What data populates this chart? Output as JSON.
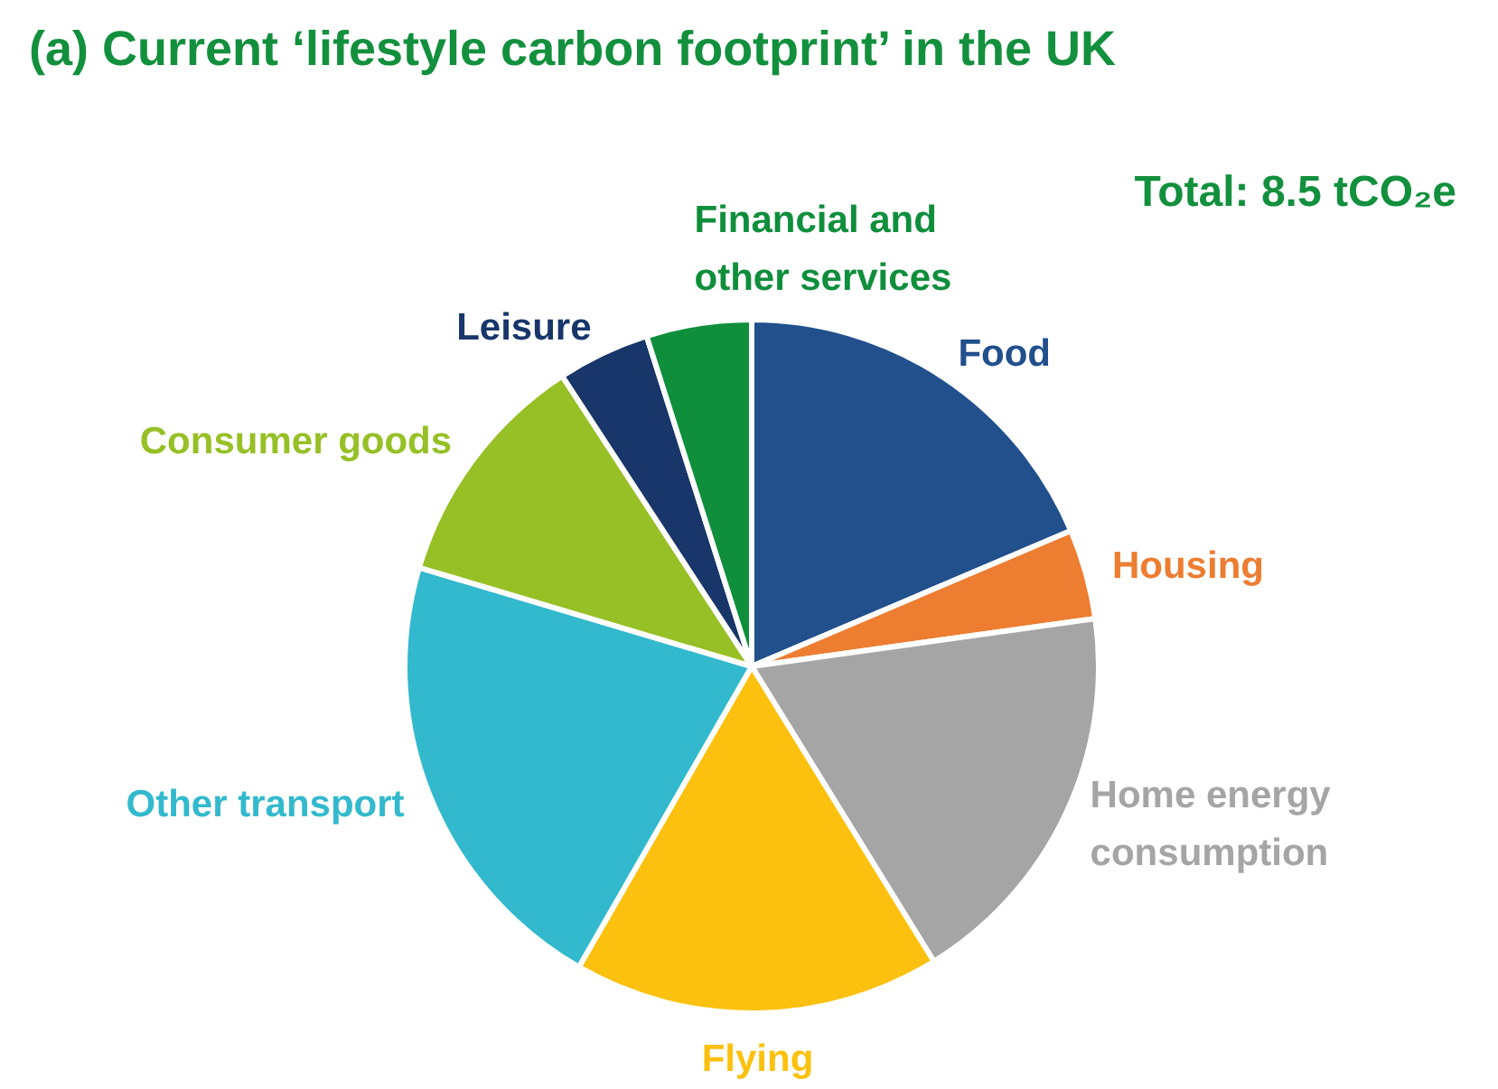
{
  "chart_data": {
    "type": "pie",
    "title": "(a) Current ‘lifestyle carbon footprint’ in the UK",
    "categories": [
      "Food",
      "Housing",
      "Home energy consumption",
      "Flying",
      "Other transport",
      "Consumer goods",
      "Leisure",
      "Financial and other services"
    ],
    "values": [
      18.6,
      4.2,
      18.4,
      17.1,
      21.3,
      11.2,
      4.3,
      4.9
    ],
    "colors": [
      "#21508c",
      "#ed7d31",
      "#a5a5a5",
      "#fcc10e",
      "#33b9cd",
      "#96c026",
      "#18366a",
      "#0f8e3c"
    ],
    "annotations": [
      "Total: 8.5 tCO₂e"
    ]
  }
}
